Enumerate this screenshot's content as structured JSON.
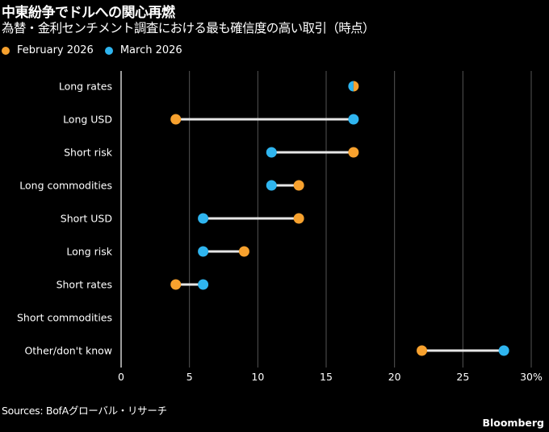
{
  "header": {
    "title": "中東紛争でドルへの関心再燃",
    "subtitle": "為替・金利センチメント調査における最も確信度の高い取引（時点）"
  },
  "legend": [
    {
      "label": "February 2026",
      "color": "#f7a12e"
    },
    {
      "label": "March 2026",
      "color": "#2fb5ef"
    }
  ],
  "chart_data": {
    "type": "dumbbell",
    "title": "中東紛争でドルへの関心再燃",
    "subtitle": "為替・金利センチメント調査における最も確信度の高い取引（時点）",
    "xlabel": "",
    "ylabel": "",
    "xlim": [
      0,
      30
    ],
    "x_ticks": [
      "0",
      "5",
      "10",
      "15",
      "20",
      "25",
      "30%"
    ],
    "x_tick_values": [
      0,
      5,
      10,
      15,
      20,
      25,
      30
    ],
    "grid": true,
    "legend_position": "top-left",
    "categories": [
      "Long rates",
      "Long USD",
      "Short risk",
      "Long commodities",
      "Short USD",
      "Long risk",
      "Short rates",
      "Short commodities",
      "Other/don't know"
    ],
    "series": [
      {
        "name": "February 2026",
        "color": "#f7a12e",
        "values": [
          17,
          4,
          17,
          13,
          13,
          9,
          4,
          null,
          22
        ]
      },
      {
        "name": "March 2026",
        "color": "#2fb5ef",
        "values": [
          17,
          17,
          11,
          11,
          6,
          6,
          6,
          null,
          28
        ]
      }
    ],
    "connector_color": "#e6e6e6",
    "gridline_color": "#555555"
  },
  "footer": {
    "source": "Sources: BofAグローバル・リサーチ",
    "brand": "Bloomberg"
  }
}
